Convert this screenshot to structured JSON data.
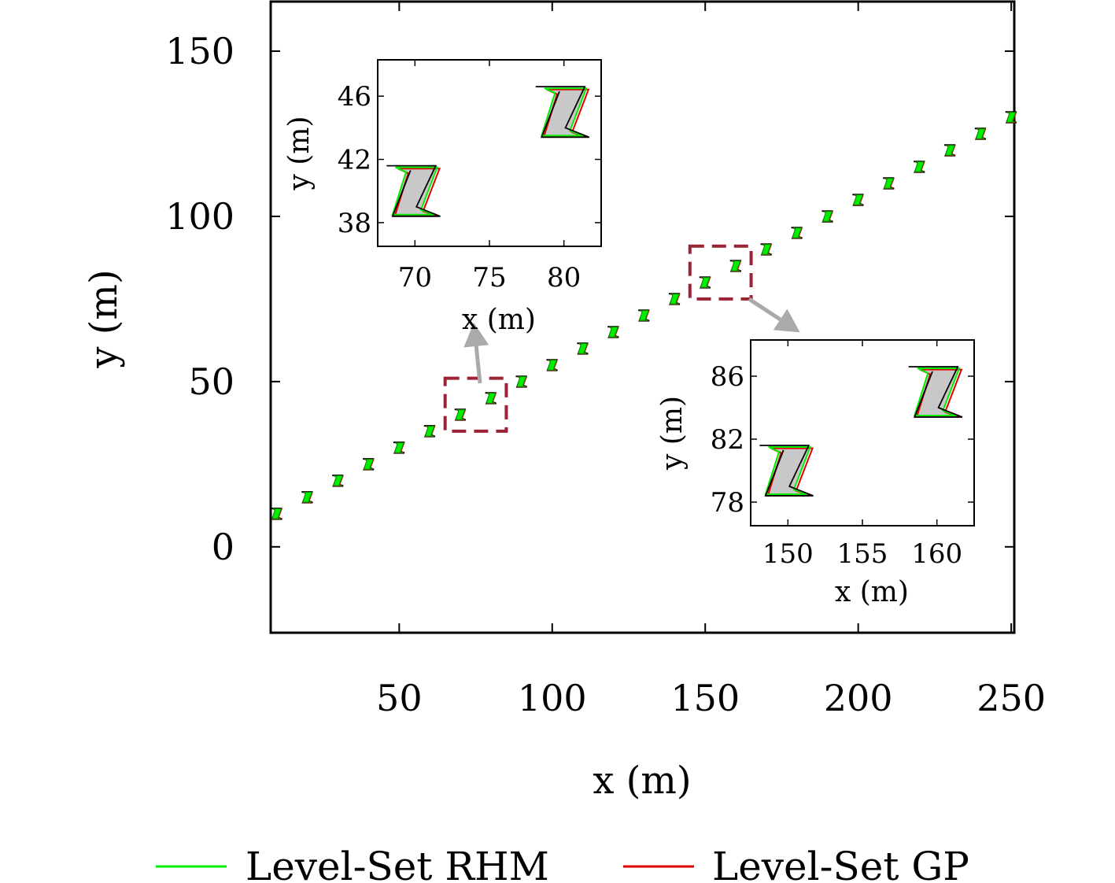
{
  "chart_data": {
    "type": "scatter",
    "title": "",
    "xlabel": "x (m)",
    "ylabel": "y (m)",
    "xlim": [
      8,
      251
    ],
    "ylim": [
      -26,
      165
    ],
    "xticks": [
      50,
      100,
      150,
      200,
      250
    ],
    "yticks": [
      0,
      50,
      100,
      150
    ],
    "grid": false,
    "legend_position": "bottom",
    "colors": {
      "rhm": "#00ee00",
      "gp": "#e00000",
      "truth": "#000000",
      "fill": "#c8c8c8",
      "box": "#9b2335",
      "arrow": "#aaaaaa"
    },
    "series": [
      {
        "name": "Level-Set RHM",
        "color": "#00ee00"
      },
      {
        "name": "Level-Set GP",
        "color": "#e00000"
      }
    ],
    "positions": [
      {
        "x": 10,
        "y": 10
      },
      {
        "x": 20,
        "y": 15
      },
      {
        "x": 30,
        "y": 20
      },
      {
        "x": 40,
        "y": 25
      },
      {
        "x": 50,
        "y": 30
      },
      {
        "x": 60,
        "y": 35
      },
      {
        "x": 70,
        "y": 40
      },
      {
        "x": 80,
        "y": 45
      },
      {
        "x": 90,
        "y": 50
      },
      {
        "x": 100,
        "y": 55
      },
      {
        "x": 110,
        "y": 60
      },
      {
        "x": 120,
        "y": 65
      },
      {
        "x": 130,
        "y": 70
      },
      {
        "x": 140,
        "y": 75
      },
      {
        "x": 150,
        "y": 80
      },
      {
        "x": 160,
        "y": 85
      },
      {
        "x": 170,
        "y": 90
      },
      {
        "x": 180,
        "y": 95
      },
      {
        "x": 190,
        "y": 100
      },
      {
        "x": 200,
        "y": 105
      },
      {
        "x": 210,
        "y": 110
      },
      {
        "x": 220,
        "y": 115
      },
      {
        "x": 230,
        "y": 120
      },
      {
        "x": 240,
        "y": 125
      },
      {
        "x": 250,
        "y": 130
      }
    ],
    "insets": [
      {
        "xlim": [
          67.5,
          82.5
        ],
        "ylim": [
          36.5,
          48.3
        ],
        "xticks": [
          70,
          75,
          80
        ],
        "yticks": [
          38,
          42,
          46
        ],
        "xlabel": "x (m)",
        "ylabel": "y (m)",
        "zoom_box": {
          "xlim": [
            65,
            85
          ],
          "ylim": [
            35,
            51
          ]
        },
        "objects": [
          {
            "x": 70,
            "y": 40
          },
          {
            "x": 80,
            "y": 45
          }
        ]
      },
      {
        "xlim": [
          147.5,
          162.5
        ],
        "ylim": [
          76.5,
          88.3
        ],
        "xticks": [
          150,
          155,
          160
        ],
        "yticks": [
          78,
          82,
          86
        ],
        "xlabel": "x (m)",
        "ylabel": "y (m)",
        "zoom_box": {
          "xlim": [
            145,
            165
          ],
          "ylim": [
            75,
            91
          ]
        },
        "objects": [
          {
            "x": 150,
            "y": 80
          },
          {
            "x": 160,
            "y": 85
          }
        ]
      }
    ]
  }
}
